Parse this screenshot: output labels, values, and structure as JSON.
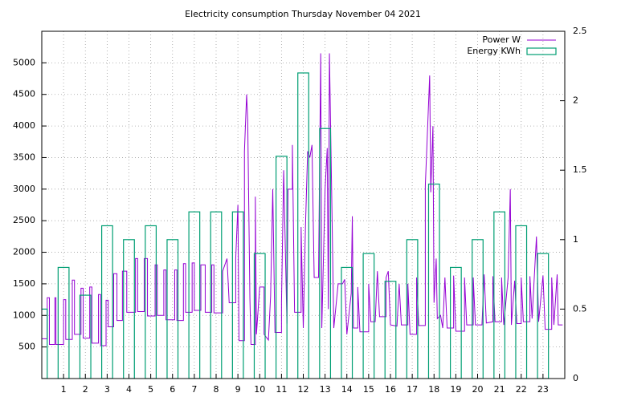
{
  "chart_data": {
    "type": "line",
    "title": "Electricity consumption Thursday November 04 2021",
    "xlim": [
      0,
      24
    ],
    "xticks": [
      1,
      2,
      3,
      4,
      5,
      6,
      7,
      8,
      9,
      10,
      11,
      12,
      13,
      14,
      15,
      16,
      17,
      18,
      19,
      20,
      21,
      22,
      23
    ],
    "ylim": [
      0,
      5500
    ],
    "yticks": [
      500,
      1000,
      1500,
      2000,
      2500,
      3000,
      3500,
      4000,
      4500,
      5000
    ],
    "y2lim": [
      0,
      2.5
    ],
    "y2ticks": [
      0,
      0.5,
      1,
      1.5,
      2,
      2.5
    ],
    "grid": true,
    "legend": "top-right",
    "series": [
      {
        "name": "Power W",
        "color": "#9400d3",
        "type": "line",
        "x": [
          0,
          0.25,
          0.25,
          0.35,
          0.35,
          0.6,
          0.6,
          0.65,
          0.65,
          1.0,
          1.0,
          1.1,
          1.1,
          1.4,
          1.4,
          1.5,
          1.5,
          1.8,
          1.8,
          1.9,
          1.9,
          2.2,
          2.2,
          2.3,
          2.3,
          2.6,
          2.6,
          2.7,
          2.7,
          2.95,
          2.95,
          3.05,
          3.05,
          3.3,
          3.3,
          3.45,
          3.45,
          3.7,
          3.7,
          3.9,
          3.9,
          4.3,
          4.3,
          4.4,
          4.4,
          4.7,
          4.7,
          4.85,
          4.85,
          5.2,
          5.2,
          5.3,
          5.3,
          5.6,
          5.6,
          5.7,
          5.7,
          6.1,
          6.1,
          6.2,
          6.2,
          6.5,
          6.5,
          6.6,
          6.6,
          6.9,
          6.9,
          7.0,
          7.0,
          7.3,
          7.3,
          7.5,
          7.5,
          7.8,
          7.8,
          7.9,
          7.9,
          8.3,
          8.3,
          8.5,
          8.6,
          8.9,
          8.9,
          9.0,
          9.05,
          9.3,
          9.3,
          9.4,
          9.45,
          9.55,
          9.6,
          9.8,
          9.8,
          9.85,
          10.0,
          10.2,
          10.2,
          10.4,
          10.5,
          10.6,
          10.7,
          11.0,
          11.0,
          11.1,
          11.25,
          11.3,
          11.5,
          11.5,
          11.6,
          11.9,
          11.9,
          12.0,
          12.1,
          12.2,
          12.3,
          12.4,
          12.5,
          12.7,
          12.8,
          12.85,
          13.0,
          13.1,
          13.15,
          13.2,
          13.3,
          13.4,
          13.6,
          13.8,
          13.9,
          14.0,
          14.2,
          14.25,
          14.3,
          14.5,
          14.5,
          14.6,
          15.0,
          15.0,
          15.1,
          15.3,
          15.4,
          15.5,
          15.8,
          15.8,
          15.9,
          16.0,
          16.3,
          16.4,
          16.5,
          16.8,
          16.8,
          16.9,
          17.2,
          17.2,
          17.3,
          17.6,
          17.6,
          17.8,
          17.85,
          17.95,
          18.0,
          18.1,
          18.15,
          18.3,
          18.4,
          18.5,
          18.6,
          18.9,
          18.9,
          19.0,
          19.4,
          19.4,
          19.5,
          19.8,
          19.8,
          19.9,
          20.2,
          20.3,
          20.4,
          20.7,
          20.7,
          20.8,
          21.1,
          21.1,
          21.2,
          21.4,
          21.5,
          21.55,
          21.7,
          21.8,
          22.0,
          22.0,
          22.1,
          22.4,
          22.4,
          22.5,
          22.7,
          22.8,
          23.0,
          23.1,
          23.4,
          23.4,
          23.5,
          23.65,
          23.7,
          23.9
        ],
        "values": [
          630,
          630,
          1280,
          1280,
          540,
          540,
          1280,
          1280,
          540,
          540,
          1250,
          1250,
          620,
          620,
          1560,
          1560,
          700,
          700,
          1430,
          1430,
          640,
          640,
          1450,
          1450,
          560,
          560,
          1330,
          1330,
          520,
          520,
          1240,
          1240,
          820,
          820,
          1660,
          1660,
          920,
          920,
          1700,
          1700,
          1050,
          1050,
          1900,
          1900,
          1060,
          1060,
          1900,
          1900,
          990,
          990,
          1800,
          1800,
          1000,
          1000,
          1720,
          1720,
          930,
          930,
          1720,
          1720,
          920,
          920,
          1820,
          1820,
          1050,
          1050,
          1830,
          1830,
          1080,
          1080,
          1800,
          1800,
          1050,
          1050,
          1800,
          1800,
          1040,
          1040,
          1700,
          1900,
          1200,
          1200,
          1900,
          2750,
          600,
          600,
          3600,
          4500,
          4100,
          1280,
          540,
          540,
          2880,
          700,
          1450,
          1450,
          700,
          610,
          1300,
          3000,
          730,
          730,
          1200,
          3300,
          870,
          3000,
          3000,
          3700,
          1050,
          1050,
          2400,
          800,
          2400,
          3600,
          3500,
          3700,
          1600,
          1600,
          5150,
          800,
          3000,
          3650,
          1100,
          5150,
          3000,
          800,
          1500,
          1500,
          1570,
          700,
          1350,
          2570,
          800,
          800,
          1450,
          740,
          740,
          1500,
          900,
          900,
          1700,
          980,
          980,
          1600,
          1700,
          850,
          830,
          1500,
          850,
          850,
          1500,
          700,
          700,
          1600,
          840,
          840,
          3050,
          4800,
          2950,
          4000,
          1200,
          1900,
          950,
          1000,
          800,
          1600,
          800,
          800,
          1630,
          750,
          750,
          1600,
          850,
          850,
          1600,
          850,
          850,
          1650,
          880,
          900,
          1620,
          900,
          900,
          1600,
          850,
          1600,
          3000,
          850,
          1550,
          870,
          870,
          1600,
          900,
          900,
          1620,
          950,
          2250,
          900,
          1630,
          780,
          780,
          1600,
          850,
          1650,
          850,
          850
        ]
      },
      {
        "name": "Energy KWh",
        "color": "#009e73",
        "type": "box",
        "axis": "y2",
        "x": [
          0,
          1,
          2,
          3,
          4,
          5,
          6,
          7,
          8,
          9,
          10,
          11,
          12,
          13,
          14,
          15,
          16,
          17,
          18,
          19,
          20,
          21,
          22,
          23
        ],
        "values": [
          0.5,
          0.8,
          0.6,
          1.1,
          1.0,
          1.1,
          1.0,
          1.2,
          1.2,
          1.2,
          0.9,
          1.6,
          2.2,
          1.8,
          0.8,
          0.9,
          0.7,
          1.0,
          1.4,
          0.8,
          1.0,
          1.2,
          1.1,
          0.9
        ]
      }
    ]
  }
}
